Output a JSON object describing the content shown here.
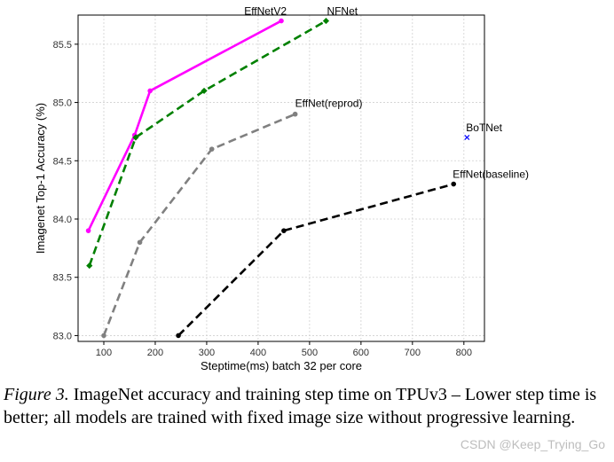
{
  "chart_data": {
    "type": "line",
    "xlabel": "Steptime(ms) batch 32 per core",
    "ylabel": "Imagenet Top-1 Accuracy (%)",
    "xlim": [
      50,
      840
    ],
    "ylim": [
      82.95,
      85.75
    ],
    "xticks": [
      100,
      200,
      300,
      400,
      500,
      600,
      700,
      800
    ],
    "yticks": [
      83.0,
      83.5,
      84.0,
      84.5,
      85.0,
      85.5
    ],
    "ytick_labels": [
      "83.0",
      "83.5",
      "84.0",
      "84.5",
      "85.0",
      "85.5"
    ],
    "grid": true,
    "series": [
      {
        "name": "EffNetV2",
        "color": "#ff00ff",
        "dash": "solid",
        "marker": "circle",
        "x": [
          70,
          160,
          190,
          445
        ],
        "y": [
          83.9,
          84.72,
          85.1,
          85.7
        ]
      },
      {
        "name": "NFNet",
        "color": "#008000",
        "dash": "dashed",
        "marker": "diamond",
        "x": [
          72,
          162,
          295,
          532
        ],
        "y": [
          83.6,
          84.7,
          85.1,
          85.7
        ]
      },
      {
        "name": "EffNet(reprod)",
        "color": "#808080",
        "dash": "dashed",
        "marker": "circle",
        "x": [
          100,
          170,
          310,
          472
        ],
        "y": [
          83.0,
          83.8,
          84.6,
          84.9
        ]
      },
      {
        "name": "EffNet(baseline)",
        "color": "#000000",
        "dash": "dashed",
        "marker": "circle",
        "x": [
          245,
          450,
          780
        ],
        "y": [
          83.0,
          83.9,
          84.3
        ]
      },
      {
        "name": "BoTNet",
        "color": "#0000ff",
        "dash": "none",
        "marker": "x",
        "x": [
          806
        ],
        "y": [
          84.7
        ]
      }
    ]
  },
  "caption": {
    "figure_label": "Figure 3.",
    "text": " ImageNet accuracy and training step time on TPUv3 – Lower step time is better; all models are trained with fixed image size without progressive learning."
  },
  "watermark": "CSDN @Keep_Trying_Go"
}
